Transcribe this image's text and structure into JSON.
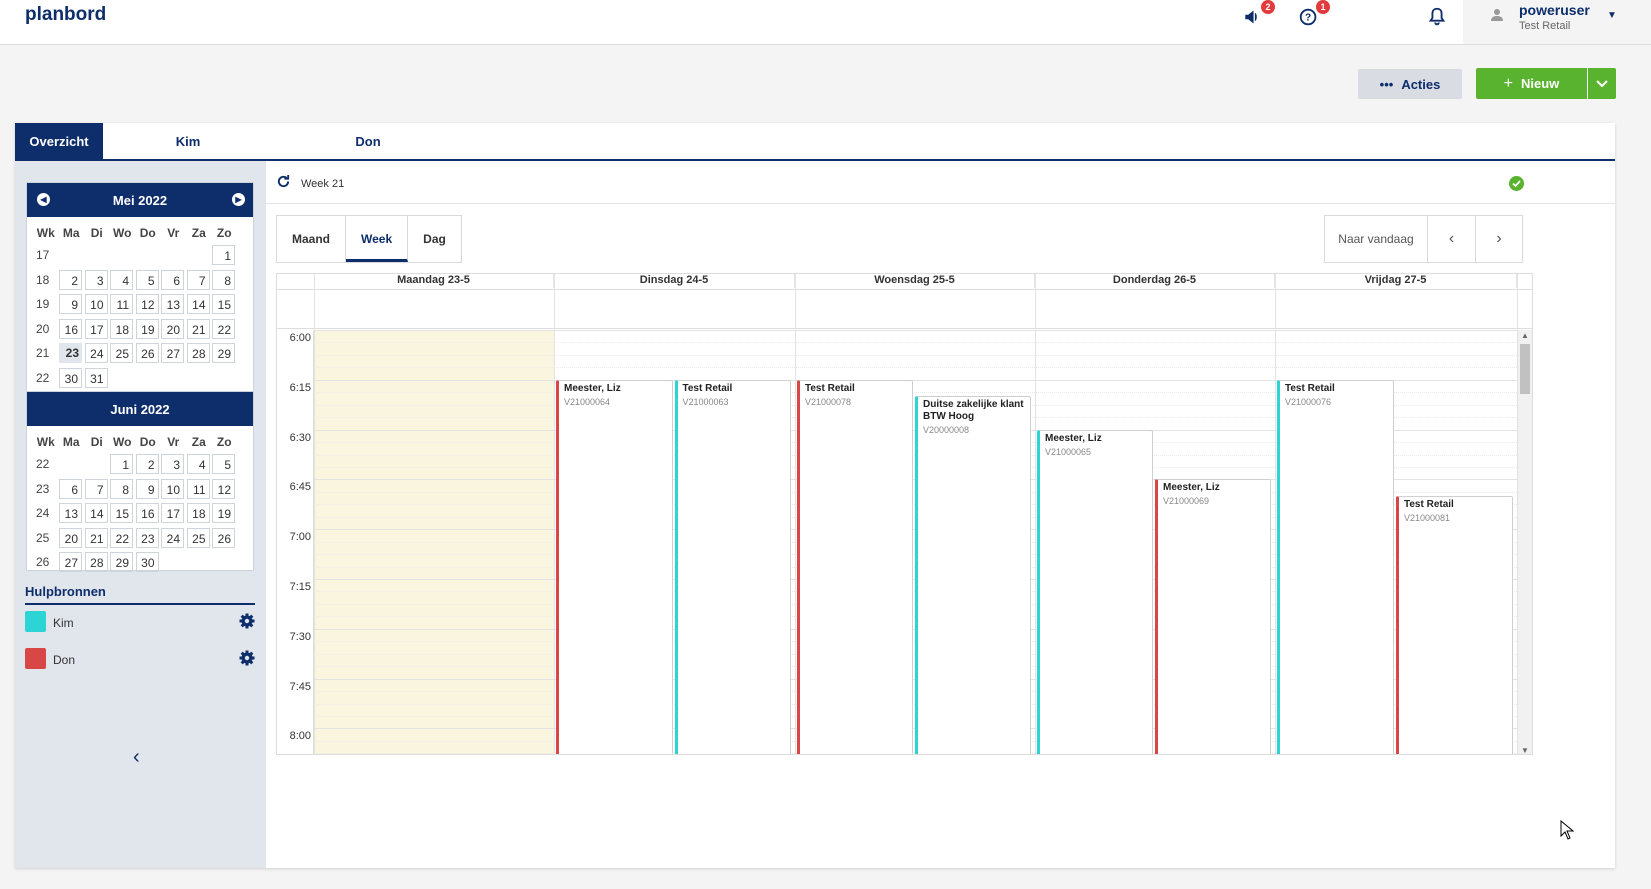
{
  "app": {
    "title": "planbord"
  },
  "header": {
    "megaphone_badge": "2",
    "help_badge": "1",
    "user_name": "poweruser",
    "user_org": "Test Retail"
  },
  "actions": {
    "acties_label": "Acties",
    "nieuw_label": "Nieuw"
  },
  "tabs": [
    {
      "label": "Overzicht"
    },
    {
      "label": "Kim"
    },
    {
      "label": "Don"
    }
  ],
  "mini_calendars": [
    {
      "title": "Mei 2022",
      "day_headers": [
        "Wk",
        "Ma",
        "Di",
        "Wo",
        "Do",
        "Vr",
        "Za",
        "Zo"
      ],
      "weeks": [
        {
          "wk": "17",
          "days": [
            "",
            "",
            "",
            "",
            "",
            "",
            "1"
          ]
        },
        {
          "wk": "18",
          "days": [
            "2",
            "3",
            "4",
            "5",
            "6",
            "7",
            "8"
          ]
        },
        {
          "wk": "19",
          "days": [
            "9",
            "10",
            "11",
            "12",
            "13",
            "14",
            "15"
          ]
        },
        {
          "wk": "20",
          "days": [
            "16",
            "17",
            "18",
            "19",
            "20",
            "21",
            "22"
          ]
        },
        {
          "wk": "21",
          "days": [
            "23",
            "24",
            "25",
            "26",
            "27",
            "28",
            "29"
          ]
        },
        {
          "wk": "22",
          "days": [
            "30",
            "31",
            "",
            "",
            "",
            "",
            ""
          ]
        }
      ],
      "today": "23"
    },
    {
      "title": "Juni 2022",
      "day_headers": [
        "Wk",
        "Ma",
        "Di",
        "Wo",
        "Do",
        "Vr",
        "Za",
        "Zo"
      ],
      "weeks": [
        {
          "wk": "22",
          "days": [
            "",
            "",
            "1",
            "2",
            "3",
            "4",
            "5"
          ]
        },
        {
          "wk": "23",
          "days": [
            "6",
            "7",
            "8",
            "9",
            "10",
            "11",
            "12"
          ]
        },
        {
          "wk": "24",
          "days": [
            "13",
            "14",
            "15",
            "16",
            "17",
            "18",
            "19"
          ]
        },
        {
          "wk": "25",
          "days": [
            "20",
            "21",
            "22",
            "23",
            "24",
            "25",
            "26"
          ]
        },
        {
          "wk": "26",
          "days": [
            "27",
            "28",
            "29",
            "30",
            "",
            "",
            ""
          ]
        }
      ],
      "today": ""
    }
  ],
  "resources": {
    "title": "Hulpbronnen",
    "items": [
      {
        "name": "Kim",
        "color": "#2dd4d4"
      },
      {
        "name": "Don",
        "color": "#d94646"
      }
    ]
  },
  "schedule": {
    "week_label": "Week 21",
    "views": [
      "Maand",
      "Week",
      "Dag"
    ],
    "active_view": "Week",
    "today_label": "Naar vandaag",
    "days": [
      "Maandag 23-5",
      "Dinsdag 24-5",
      "Woensdag 25-5",
      "Donderdag 26-5",
      "Vrijdag 27-5"
    ],
    "times": [
      "6:00",
      "6:15",
      "6:30",
      "6:45",
      "7:00",
      "7:15",
      "7:30",
      "7:45",
      "8:00"
    ],
    "events": [
      {
        "day": 1,
        "lane": 0,
        "start": "6:15",
        "title": "Meester, Liz",
        "code": "V21000064",
        "color": "#d94646"
      },
      {
        "day": 1,
        "lane": 1,
        "start": "6:15",
        "title": "Test Retail",
        "code": "V21000063",
        "color": "#2dd4d4"
      },
      {
        "day": 2,
        "lane": 0,
        "start": "6:15",
        "title": "Test Retail",
        "code": "V21000078",
        "color": "#d94646"
      },
      {
        "day": 2,
        "lane": 1,
        "start": "6:20",
        "title": "Duitse zakelijke klant BTW Hoog",
        "code": "V20000008",
        "color": "#2dd4d4"
      },
      {
        "day": 3,
        "lane": 0,
        "start": "6:30",
        "title": "Meester, Liz",
        "code": "V21000065",
        "color": "#2dd4d4"
      },
      {
        "day": 3,
        "lane": 1,
        "start": "6:45",
        "title": "Meester, Liz",
        "code": "V21000069",
        "color": "#d94646"
      },
      {
        "day": 4,
        "lane": 0,
        "start": "6:15",
        "title": "Test Retail",
        "code": "V21000076",
        "color": "#2dd4d4"
      },
      {
        "day": 4,
        "lane": 1,
        "start": "6:50",
        "title": "Test Retail",
        "code": "V21000081",
        "color": "#d94646"
      }
    ]
  }
}
